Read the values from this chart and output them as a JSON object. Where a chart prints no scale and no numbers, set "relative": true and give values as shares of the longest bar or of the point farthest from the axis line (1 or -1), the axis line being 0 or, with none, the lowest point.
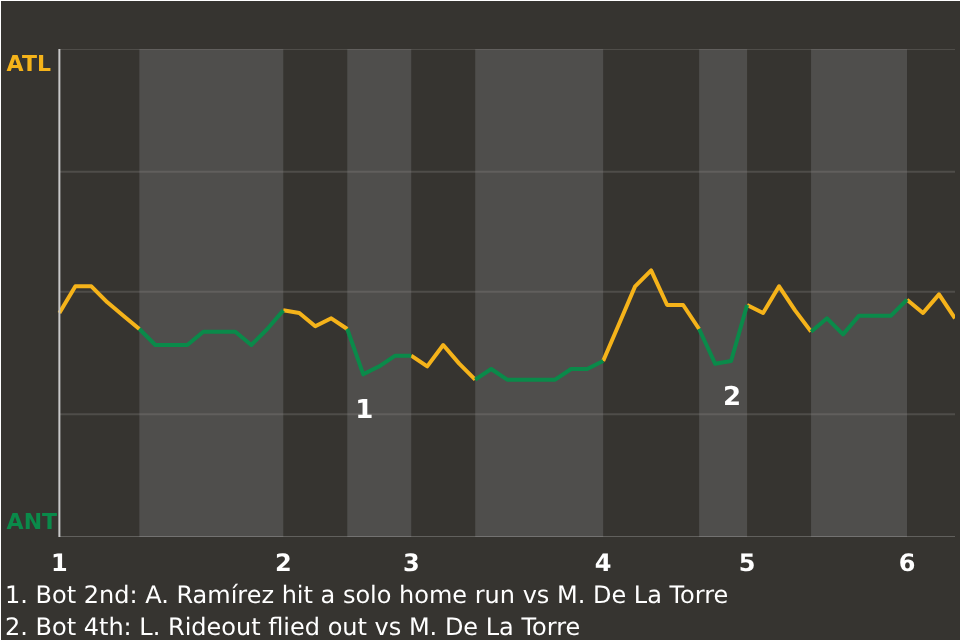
{
  "chart_data": {
    "type": "line",
    "relative": true,
    "categories": [
      "1",
      null,
      null,
      null,
      null,
      null,
      null,
      null,
      null,
      null,
      null,
      null,
      null,
      null,
      "2",
      null,
      null,
      null,
      null,
      null,
      null,
      null,
      "3",
      null,
      null,
      null,
      null,
      null,
      null,
      null,
      null,
      null,
      null,
      null,
      "4",
      null,
      null,
      null,
      null,
      null,
      null,
      null,
      null,
      "5",
      null,
      null,
      null,
      null,
      null,
      null,
      null,
      null,
      null,
      "6",
      null,
      null,
      null
    ],
    "grid": false,
    "marker": "none",
    "line_style": "solid",
    "series": [
      {
        "color": "#f5b31a",
        "values": [
          0.84,
          0.94,
          0.94,
          0.88,
          0.83,
          0.78,
          null,
          null,
          null,
          null,
          null,
          null,
          null,
          null,
          0.85,
          0.84,
          0.79,
          0.82,
          0.78,
          null,
          null,
          null,
          0.68,
          0.64,
          0.72,
          0.65,
          0.59,
          null,
          null,
          null,
          null,
          null,
          null,
          null,
          0.66,
          0.8,
          0.94,
          1.0,
          0.87,
          0.87,
          0.78,
          null,
          null,
          0.87,
          0.84,
          0.94,
          0.85,
          0.77,
          null,
          null,
          null,
          null,
          null,
          0.89,
          0.84,
          0.91,
          0.82
        ]
      },
      {
        "color": "#0a8a4a",
        "values": [
          null,
          null,
          null,
          null,
          null,
          0.78,
          0.72,
          0.72,
          0.72,
          0.77,
          0.77,
          0.77,
          0.72,
          0.78,
          0.85,
          null,
          null,
          null,
          0.78,
          0.61,
          0.64,
          0.68,
          0.68,
          null,
          null,
          null,
          0.59,
          0.63,
          0.59,
          0.59,
          0.59,
          0.59,
          0.63,
          0.63,
          0.66,
          null,
          null,
          null,
          null,
          null,
          0.78,
          0.65,
          0.66,
          0.87,
          null,
          null,
          null,
          0.77,
          0.82,
          0.76,
          0.83,
          0.83,
          0.83,
          0.89,
          null,
          null,
          null
        ]
      }
    ],
    "ref_lines": [
      {
        "axis": "y",
        "value": 0.46,
        "color": "#8a8986"
      },
      {
        "axis": "y",
        "value": 0.92,
        "color": "#8a8986"
      },
      {
        "axis": "y",
        "value": 1.37,
        "color": "#8a8986"
      },
      {
        "axis": "y",
        "value": 1.83,
        "color": "#8a8986"
      }
    ],
    "annotations": [
      "ATL",
      "ANT",
      {
        "text": "1",
        "y": 0.61
      },
      {
        "text": "2",
        "y": 0.66
      },
      "1. Bot 2nd: A. Ramírez hit a solo home run vs M. De La Torre",
      "2. Bot 4th: L. Rideout flied out vs M. De La Torre"
    ]
  }
}
